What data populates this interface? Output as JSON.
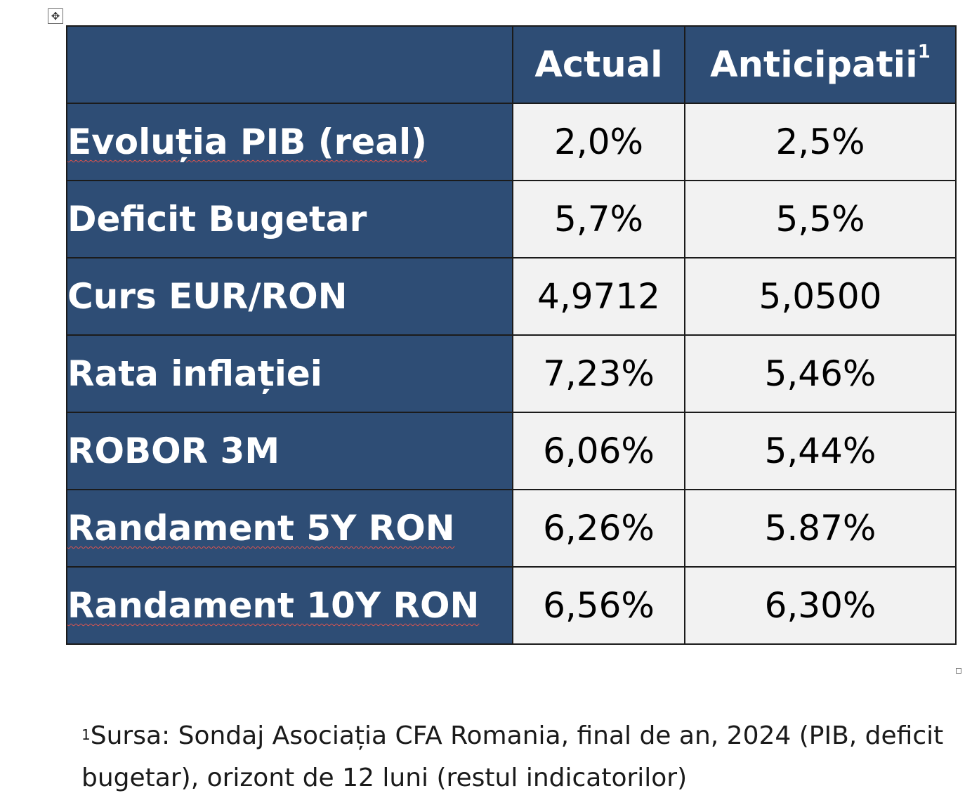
{
  "table": {
    "header": {
      "col1": "",
      "col2": "Actual",
      "col3": "Anticipatii",
      "col3_sup": "1"
    },
    "rows": [
      {
        "label": "Evoluția PIB (real)",
        "actual": "2,0%",
        "anticipatii": "2,5%"
      },
      {
        "label": "Deficit Bugetar",
        "actual": "5,7%",
        "anticipatii": "5,5%"
      },
      {
        "label": "Curs EUR/RON",
        "actual": "4,9712",
        "anticipatii": "5,0500"
      },
      {
        "label": "Rata inflației",
        "actual": "7,23%",
        "anticipatii": "5,46%"
      },
      {
        "label": "ROBOR 3M",
        "actual": "6,06%",
        "anticipatii": "5,44%"
      },
      {
        "label": "Randament 5Y RON",
        "actual": "6,26%",
        "anticipatii": "5.87%"
      },
      {
        "label": "Randament 10Y RON",
        "actual": "6,56%",
        "anticipatii": "6,30%"
      }
    ],
    "colors": {
      "header_bg": "#2e4d75",
      "value_bg": "#f2f2f2",
      "spellcheck_underline": "#d9534f"
    }
  },
  "footnote": {
    "marker": "1",
    "line1": "Sursa: Sondaj Asociația CFA Romania, final de an, 2024 (PIB, deficit",
    "line2": "bugetar), orizont de 12 luni (restul indicatorilor)"
  },
  "icons": {
    "table_move": "move-arrows-icon",
    "table_resize": "resize-handle-icon"
  }
}
